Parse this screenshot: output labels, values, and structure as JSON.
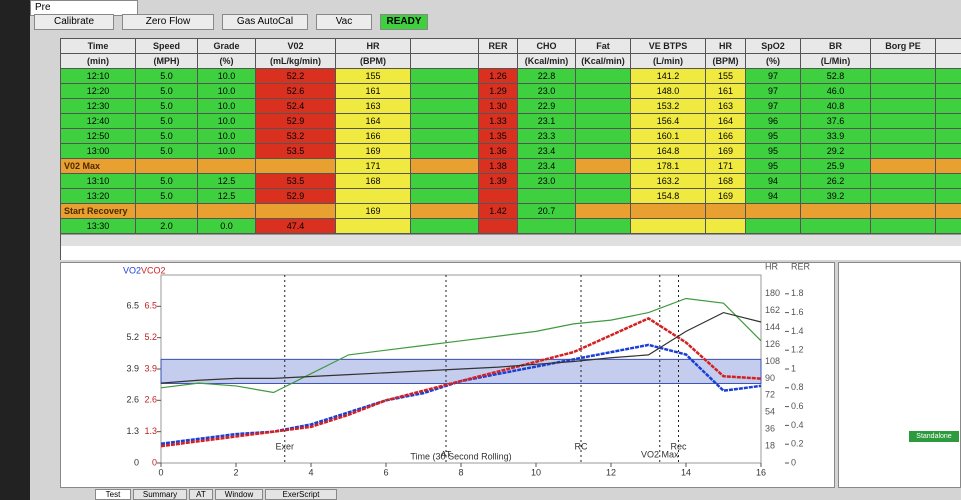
{
  "toolbar": {
    "dropdown": "Pre",
    "buttons": [
      "Calibrate",
      "Zero Flow",
      "Gas AutoCal",
      "Vac"
    ],
    "status": "READY"
  },
  "table": {
    "headers": [
      "Time",
      "Speed",
      "Grade",
      "V02",
      "HR",
      null,
      "RER",
      "CHO",
      "Fat",
      "VE BTPS",
      "HR",
      "SpO2",
      "BR",
      "Borg PE",
      null
    ],
    "units": [
      "(min)",
      "(MPH)",
      "(%)",
      "(mL/kg/min)",
      "(BPM)",
      null,
      null,
      "(Kcal/min)",
      "(Kcal/min)",
      "(L/min)",
      "(BPM)",
      "(%)",
      "(L/Min)",
      null,
      null
    ],
    "rows": [
      [
        "12:10",
        "5.0",
        "10.0",
        "52.2",
        "155",
        null,
        "1.26",
        "22.8",
        null,
        "141.2",
        "155",
        "97",
        "52.8",
        null,
        null
      ],
      [
        "12:20",
        "5.0",
        "10.0",
        "52.6",
        "161",
        null,
        "1.29",
        "23.0",
        null,
        "148.0",
        "161",
        "97",
        "46.0",
        null,
        null
      ],
      [
        "12:30",
        "5.0",
        "10.0",
        "52.4",
        "163",
        null,
        "1.30",
        "22.9",
        null,
        "153.2",
        "163",
        "97",
        "40.8",
        null,
        null
      ],
      [
        "12:40",
        "5.0",
        "10.0",
        "52.9",
        "164",
        null,
        "1.33",
        "23.1",
        null,
        "156.4",
        "164",
        "96",
        "37.6",
        null,
        null
      ],
      [
        "12:50",
        "5.0",
        "10.0",
        "53.2",
        "166",
        null,
        "1.35",
        "23.3",
        null,
        "160.1",
        "166",
        "95",
        "33.9",
        null,
        null
      ],
      [
        "13:00",
        "5.0",
        "10.0",
        "53.5",
        "169",
        null,
        "1.36",
        "23.4",
        null,
        "164.8",
        "169",
        "95",
        "29.2",
        null,
        null
      ],
      [
        "V02 Max",
        null,
        null,
        null,
        "171",
        null,
        "1.38",
        "23.4",
        null,
        "178.1",
        "171",
        "95",
        "25.9",
        null,
        null
      ],
      [
        "13:10",
        "5.0",
        "12.5",
        "53.5",
        "168",
        null,
        "1.39",
        "23.0",
        null,
        "163.2",
        "168",
        "94",
        "26.2",
        null,
        null
      ],
      [
        "13:20",
        "5.0",
        "12.5",
        "52.9",
        null,
        null,
        null,
        null,
        null,
        "154.8",
        "169",
        "94",
        "39.2",
        null,
        null
      ],
      [
        "Start Recovery",
        null,
        null,
        null,
        "169",
        null,
        "1.42",
        "20.7",
        null,
        null,
        null,
        null,
        null,
        null,
        null
      ],
      [
        "13:30",
        "2.0",
        "0.0",
        "47.4",
        null,
        null,
        null,
        null,
        null,
        null,
        null,
        null,
        null,
        null,
        null
      ]
    ]
  },
  "graph": {
    "x_label": "Time (30 Second Rolling)",
    "x": [
      0,
      1,
      2,
      3,
      4,
      5,
      6,
      7,
      8,
      9,
      10,
      11,
      12,
      13,
      14,
      15,
      16
    ],
    "xlim": [
      0,
      16
    ],
    "xticks": [
      0,
      2,
      4,
      6,
      8,
      10,
      12,
      14,
      16
    ],
    "ylim": [
      0,
      7.8
    ],
    "yticks": [
      0,
      1.3,
      2.6,
      3.9,
      5.2,
      6.5
    ],
    "y2lim": [
      0,
      2.0
    ],
    "y2ticks": [
      0,
      0.2,
      0.4,
      0.6,
      0.8,
      1.0,
      1.2,
      1.4,
      1.6,
      1.8
    ],
    "hrlim": [
      0,
      200
    ],
    "hrticks": [
      18,
      36,
      54,
      72,
      90,
      108,
      126,
      144,
      162,
      180
    ],
    "band": [
      3.3,
      4.3
    ],
    "series": [
      {
        "name": "VO2",
        "color": "#1a3fd6",
        "axis": "y",
        "values": [
          0.8,
          1.0,
          1.2,
          1.3,
          1.6,
          2.1,
          2.6,
          2.9,
          3.4,
          3.7,
          4.0,
          4.3,
          4.6,
          4.9,
          4.5,
          3.0,
          3.2
        ]
      },
      {
        "name": "VCO2",
        "color": "#d42020",
        "axis": "y",
        "values": [
          0.7,
          0.9,
          1.1,
          1.3,
          1.5,
          2.0,
          2.6,
          3.0,
          3.4,
          3.8,
          4.2,
          4.6,
          5.3,
          6.0,
          5.0,
          3.6,
          3.5
        ]
      },
      {
        "name": "HR",
        "color": "#3f9a3f",
        "axis": "hr",
        "values": [
          80,
          85,
          82,
          75,
          95,
          115,
          120,
          125,
          130,
          135,
          140,
          148,
          152,
          160,
          175,
          170,
          130
        ]
      },
      {
        "name": "RER",
        "color": "#333333",
        "axis": "y2",
        "values": [
          0.85,
          0.88,
          0.9,
          0.9,
          0.92,
          0.94,
          0.96,
          0.98,
          1.0,
          1.02,
          1.05,
          1.08,
          1.12,
          1.15,
          1.4,
          1.6,
          1.5
        ]
      }
    ],
    "events": [
      {
        "label": "Exer",
        "x": 3.3
      },
      {
        "label": "AT",
        "x": 7.6
      },
      {
        "label": "RC",
        "x": 11.2
      },
      {
        "label": "VO2 Max",
        "x": 13.3
      },
      {
        "label": "Rec",
        "x": 13.8
      }
    ]
  },
  "status_badge": "Standalone",
  "tabs": [
    "Test",
    "Summary",
    "AT",
    "Window",
    "ExerScript"
  ]
}
